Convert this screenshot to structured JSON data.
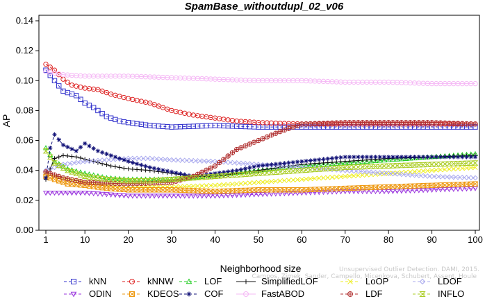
{
  "chart_data": {
    "type": "line",
    "title": "SpamBase_withoutdupl_02_v06",
    "xlabel": "Neighborhood size",
    "ylabel": "AP",
    "xlim": [
      1,
      100
    ],
    "ylim": [
      0,
      0.14
    ],
    "xticks": [
      1,
      10,
      20,
      30,
      40,
      50,
      60,
      70,
      80,
      90,
      100
    ],
    "yticks": [
      "0.00",
      "0.02",
      "0.04",
      "0.06",
      "0.08",
      "0.10",
      "0.12",
      "0.14"
    ],
    "grid": false,
    "legend_position": "bottom",
    "series": [
      {
        "name": "kNN",
        "color": "#3333cc",
        "marker": "square",
        "dash": "4,3",
        "points": [
          [
            1,
            0.107
          ],
          [
            3,
            0.1
          ],
          [
            5,
            0.093
          ],
          [
            8,
            0.09
          ],
          [
            10,
            0.085
          ],
          [
            12,
            0.082
          ],
          [
            15,
            0.076
          ],
          [
            18,
            0.073
          ],
          [
            20,
            0.072
          ],
          [
            25,
            0.07
          ],
          [
            30,
            0.069
          ],
          [
            40,
            0.07
          ],
          [
            50,
            0.069
          ],
          [
            60,
            0.069
          ],
          [
            70,
            0.069
          ],
          [
            80,
            0.069
          ],
          [
            90,
            0.069
          ],
          [
            100,
            0.069
          ]
        ]
      },
      {
        "name": "kNNW",
        "color": "#dd2222",
        "marker": "circle",
        "dash": "4,3",
        "points": [
          [
            1,
            0.111
          ],
          [
            3,
            0.107
          ],
          [
            5,
            0.101
          ],
          [
            7,
            0.097
          ],
          [
            10,
            0.095
          ],
          [
            13,
            0.094
          ],
          [
            16,
            0.091
          ],
          [
            20,
            0.088
          ],
          [
            25,
            0.085
          ],
          [
            30,
            0.08
          ],
          [
            35,
            0.077
          ],
          [
            40,
            0.075
          ],
          [
            45,
            0.073
          ],
          [
            50,
            0.072
          ],
          [
            60,
            0.071
          ],
          [
            70,
            0.071
          ],
          [
            80,
            0.071
          ],
          [
            90,
            0.071
          ],
          [
            100,
            0.071
          ]
        ]
      },
      {
        "name": "LOF",
        "color": "#22cc22",
        "marker": "triangle",
        "dash": "4,3",
        "points": [
          [
            1,
            0.055
          ],
          [
            3,
            0.046
          ],
          [
            6,
            0.041
          ],
          [
            10,
            0.038
          ],
          [
            15,
            0.035
          ],
          [
            20,
            0.034
          ],
          [
            25,
            0.034
          ],
          [
            30,
            0.034
          ],
          [
            35,
            0.035
          ],
          [
            40,
            0.037
          ],
          [
            50,
            0.04
          ],
          [
            60,
            0.043
          ],
          [
            70,
            0.045
          ],
          [
            80,
            0.047
          ],
          [
            90,
            0.049
          ],
          [
            100,
            0.051
          ]
        ]
      },
      {
        "name": "SimplifiedLOF",
        "color": "#111111",
        "marker": "plus",
        "dash": "",
        "points": [
          [
            1,
            0.034
          ],
          [
            3,
            0.048
          ],
          [
            5,
            0.05
          ],
          [
            8,
            0.049
          ],
          [
            12,
            0.046
          ],
          [
            16,
            0.043
          ],
          [
            20,
            0.041
          ],
          [
            25,
            0.04
          ],
          [
            30,
            0.038
          ],
          [
            35,
            0.036
          ],
          [
            40,
            0.036
          ],
          [
            50,
            0.04
          ],
          [
            60,
            0.044
          ],
          [
            70,
            0.046
          ],
          [
            80,
            0.048
          ],
          [
            90,
            0.049
          ],
          [
            100,
            0.05
          ]
        ]
      },
      {
        "name": "LoOP",
        "color": "#eeee22",
        "marker": "cross",
        "dash": "4,3",
        "points": [
          [
            1,
            0.038
          ],
          [
            3,
            0.036
          ],
          [
            6,
            0.034
          ],
          [
            10,
            0.032
          ],
          [
            15,
            0.03
          ],
          [
            20,
            0.029
          ],
          [
            25,
            0.029
          ],
          [
            30,
            0.029
          ],
          [
            40,
            0.03
          ],
          [
            50,
            0.032
          ],
          [
            60,
            0.034
          ],
          [
            70,
            0.036
          ],
          [
            80,
            0.038
          ],
          [
            90,
            0.04
          ],
          [
            100,
            0.042
          ]
        ]
      },
      {
        "name": "LDOF",
        "color": "#aaaaee",
        "marker": "diamond",
        "dash": "4,3",
        "points": [
          [
            1,
            0.04
          ],
          [
            5,
            0.044
          ],
          [
            10,
            0.046
          ],
          [
            15,
            0.047
          ],
          [
            20,
            0.048
          ],
          [
            25,
            0.048
          ],
          [
            30,
            0.047
          ],
          [
            40,
            0.046
          ],
          [
            50,
            0.044
          ],
          [
            60,
            0.042
          ],
          [
            70,
            0.04
          ],
          [
            80,
            0.038
          ],
          [
            90,
            0.036
          ],
          [
            100,
            0.035
          ]
        ]
      },
      {
        "name": "ODIN",
        "color": "#9933dd",
        "marker": "invtriangle",
        "dash": "4,3",
        "points": [
          [
            1,
            0.025
          ],
          [
            5,
            0.025
          ],
          [
            10,
            0.025
          ],
          [
            20,
            0.023
          ],
          [
            30,
            0.023
          ],
          [
            40,
            0.023
          ],
          [
            50,
            0.024
          ],
          [
            60,
            0.025
          ],
          [
            70,
            0.026
          ],
          [
            80,
            0.026
          ],
          [
            90,
            0.027
          ],
          [
            100,
            0.028
          ]
        ]
      },
      {
        "name": "KDEOS",
        "color": "#ee9911",
        "marker": "squarecross",
        "dash": "4,3",
        "points": [
          [
            1,
            0.036
          ],
          [
            3,
            0.034
          ],
          [
            6,
            0.031
          ],
          [
            10,
            0.03
          ],
          [
            15,
            0.028
          ],
          [
            20,
            0.027
          ],
          [
            25,
            0.027
          ],
          [
            30,
            0.027
          ],
          [
            40,
            0.026
          ],
          [
            50,
            0.027
          ],
          [
            60,
            0.027
          ],
          [
            70,
            0.028
          ],
          [
            80,
            0.029
          ],
          [
            90,
            0.03
          ],
          [
            100,
            0.031
          ]
        ]
      },
      {
        "name": "COF",
        "color": "#111177",
        "marker": "asterisk",
        "dash": "4,3",
        "points": [
          [
            1,
            0.035
          ],
          [
            2,
            0.055
          ],
          [
            3,
            0.064
          ],
          [
            5,
            0.057
          ],
          [
            8,
            0.053
          ],
          [
            10,
            0.058
          ],
          [
            13,
            0.053
          ],
          [
            16,
            0.05
          ],
          [
            20,
            0.046
          ],
          [
            25,
            0.042
          ],
          [
            30,
            0.039
          ],
          [
            35,
            0.036
          ],
          [
            40,
            0.038
          ],
          [
            45,
            0.04
          ],
          [
            50,
            0.043
          ],
          [
            60,
            0.046
          ],
          [
            70,
            0.049
          ],
          [
            80,
            0.049
          ],
          [
            90,
            0.049
          ],
          [
            100,
            0.049
          ]
        ]
      },
      {
        "name": "FastABOD",
        "color": "#f5b8f5",
        "marker": "circle",
        "dash": "",
        "points": [
          [
            1,
            0.106
          ],
          [
            5,
            0.104
          ],
          [
            10,
            0.103
          ],
          [
            20,
            0.103
          ],
          [
            30,
            0.102
          ],
          [
            40,
            0.101
          ],
          [
            50,
            0.1
          ],
          [
            60,
            0.1
          ],
          [
            70,
            0.099
          ],
          [
            80,
            0.099
          ],
          [
            90,
            0.098
          ],
          [
            100,
            0.098
          ]
        ]
      },
      {
        "name": "LDF",
        "color": "#b03030",
        "marker": "circleplus",
        "dash": "4,3",
        "points": [
          [
            1,
            0.039
          ],
          [
            5,
            0.035
          ],
          [
            10,
            0.032
          ],
          [
            20,
            0.031
          ],
          [
            30,
            0.032
          ],
          [
            35,
            0.036
          ],
          [
            40,
            0.043
          ],
          [
            45,
            0.054
          ],
          [
            50,
            0.06
          ],
          [
            55,
            0.066
          ],
          [
            60,
            0.071
          ],
          [
            70,
            0.072
          ],
          [
            80,
            0.072
          ],
          [
            90,
            0.072
          ],
          [
            100,
            0.071
          ]
        ]
      },
      {
        "name": "INFLO",
        "color": "#aacc22",
        "marker": "hourglass",
        "dash": "4,3",
        "points": [
          [
            1,
            0.053
          ],
          [
            3,
            0.045
          ],
          [
            6,
            0.04
          ],
          [
            10,
            0.036
          ],
          [
            15,
            0.034
          ],
          [
            20,
            0.033
          ],
          [
            25,
            0.033
          ],
          [
            30,
            0.034
          ],
          [
            40,
            0.036
          ],
          [
            50,
            0.038
          ],
          [
            60,
            0.04
          ],
          [
            70,
            0.042
          ],
          [
            80,
            0.043
          ],
          [
            90,
            0.044
          ],
          [
            100,
            0.045
          ]
        ]
      }
    ]
  },
  "watermark": {
    "line1": "Unsupervised Outlier Detection. DAMI, 2015.",
    "line2": "Campos, Zimek, Sander, Campello, Micenkova, Schubert, Assent, Houle"
  }
}
